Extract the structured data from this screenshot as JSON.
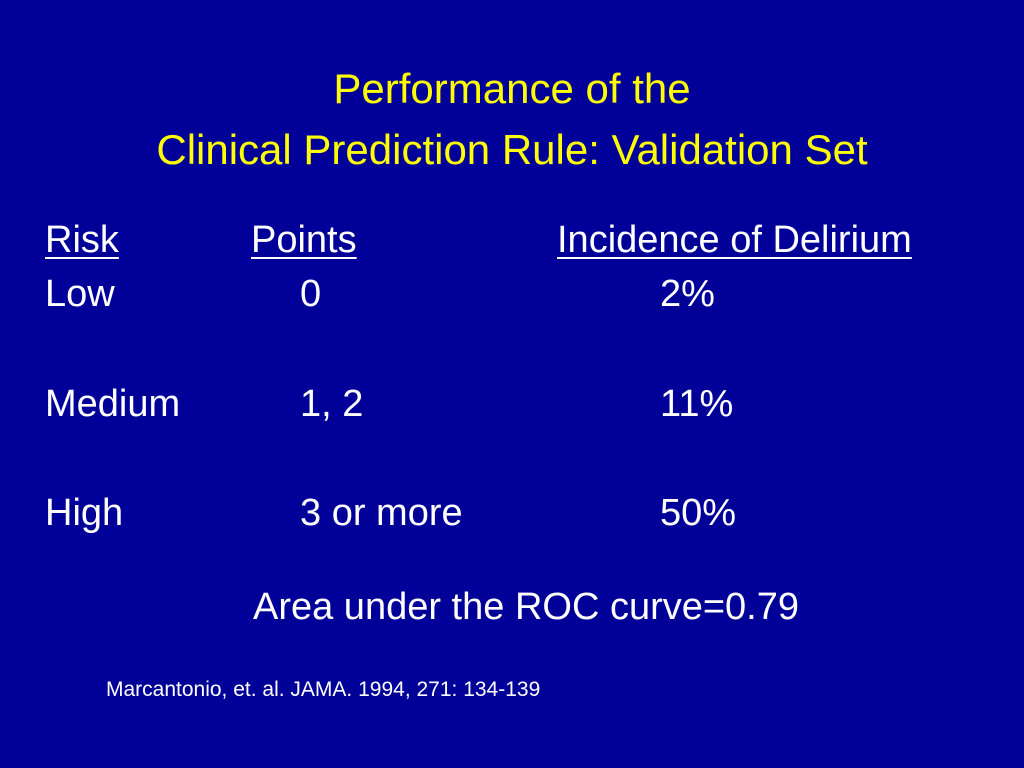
{
  "slide": {
    "title_line_1": "Performance of the",
    "title_line_2": "Clinical Prediction Rule: Validation Set",
    "table": {
      "headers": {
        "risk": "Risk",
        "points": "Points",
        "incidence": "Incidence of Delirium"
      },
      "rows": [
        {
          "risk": "Low",
          "points": "0",
          "incidence": "2%"
        },
        {
          "risk": "Medium",
          "points": "1, 2",
          "incidence": "11%"
        },
        {
          "risk": "High",
          "points": "3 or more",
          "incidence": "50%"
        }
      ]
    },
    "auc_text": "Area under the ROC curve=0.79",
    "citation": "Marcantonio, et. al. JAMA. 1994, 271: 134-139",
    "colors": {
      "background": "#000099",
      "title": "#FFFF00",
      "text": "#FFFFFF"
    }
  }
}
